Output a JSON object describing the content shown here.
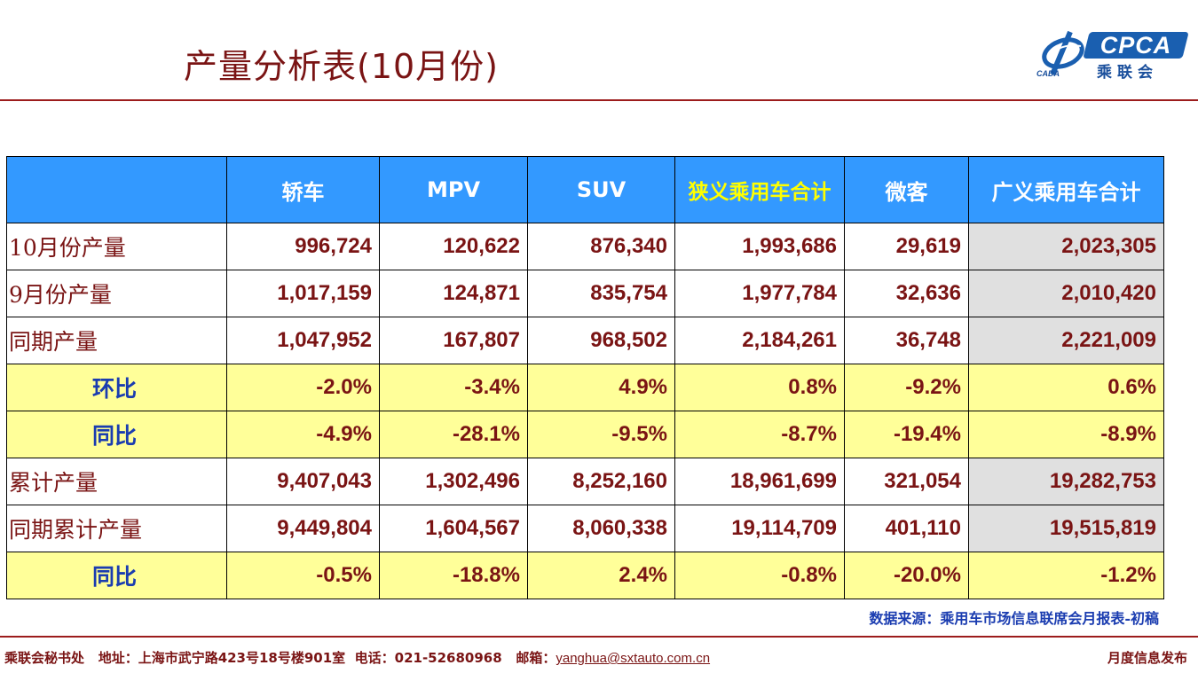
{
  "title": "产量分析表(10月份)",
  "logo": {
    "brand": "CPCA",
    "cn": "乘联会",
    "sub": "CADA"
  },
  "table": {
    "headers": [
      "",
      "轿车",
      "MPV",
      "SUV",
      "狭义乘用车合计",
      "微客",
      "广义乘用车合计"
    ],
    "rows": [
      {
        "label": "10月份产量",
        "type": "data",
        "values": [
          "996,724",
          "120,622",
          "876,340",
          "1,993,686",
          "29,619",
          "2,023,305"
        ]
      },
      {
        "label": "9月份产量",
        "type": "data",
        "values": [
          "1,017,159",
          "124,871",
          "835,754",
          "1,977,784",
          "32,636",
          "2,010,420"
        ]
      },
      {
        "label": "同期产量",
        "type": "data",
        "values": [
          "1,047,952",
          "167,807",
          "968,502",
          "2,184,261",
          "36,748",
          "2,221,009"
        ]
      },
      {
        "label": "环比",
        "type": "ratio",
        "values": [
          "-2.0%",
          "-3.4%",
          "4.9%",
          "0.8%",
          "-9.2%",
          "0.6%"
        ]
      },
      {
        "label": "同比",
        "type": "ratio",
        "values": [
          "-4.9%",
          "-28.1%",
          "-9.5%",
          "-8.7%",
          "-19.4%",
          "-8.9%"
        ]
      },
      {
        "label": "累计产量",
        "type": "data",
        "values": [
          "9,407,043",
          "1,302,496",
          "8,252,160",
          "18,961,699",
          "321,054",
          "19,282,753"
        ]
      },
      {
        "label": "同期累计产量",
        "type": "data",
        "values": [
          "9,449,804",
          "1,604,567",
          "8,060,338",
          "19,114,709",
          "401,110",
          "19,515,819"
        ]
      },
      {
        "label": "同比",
        "type": "ratio",
        "values": [
          "-0.5%",
          "-18.8%",
          "2.4%",
          "-0.8%",
          "-20.0%",
          "-1.2%"
        ]
      }
    ]
  },
  "source": "数据来源：乘用车市场信息联席会月报表-初稿",
  "footer": {
    "org": "乘联会秘书处",
    "address": "地址：上海市武宁路423号18号楼901室",
    "phone": "电话：021-52680968",
    "email_label": "邮箱：",
    "email": "yanghua@sxtauto.com.cn",
    "right": "月度信息发布"
  },
  "colors": {
    "accent": "#9c1c1c",
    "header_bg": "#3399ff",
    "ratio_bg": "#ffff99",
    "gray_cell": "#e0e0e0",
    "text": "#7a1414",
    "ratio_label": "#1a3cb0"
  }
}
